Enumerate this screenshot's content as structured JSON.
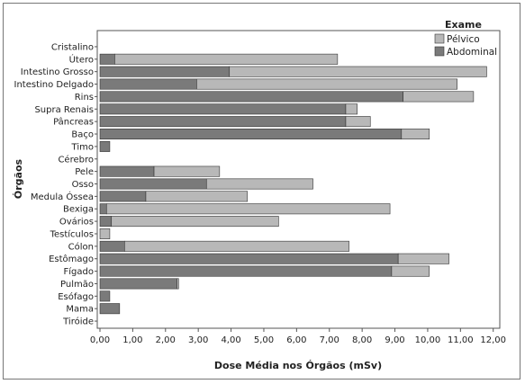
{
  "chart_data": {
    "type": "bar",
    "orientation": "horizontal",
    "stacked": true,
    "xlabel": "Dose Média nos Órgãos (mSv)",
    "ylabel": "Órgãos",
    "xlim": [
      0,
      12.2
    ],
    "x_ticks": [
      "0,00",
      "1,00",
      "2,00",
      "3,00",
      "4,00",
      "5,00",
      "6,00",
      "7,00",
      "8,00",
      "9,00",
      "10,00",
      "11,00",
      "12,00"
    ],
    "x_tick_values": [
      0,
      1,
      2,
      3,
      4,
      5,
      6,
      7,
      8,
      9,
      10,
      11,
      12
    ],
    "grid": false,
    "legend": {
      "title": "Exame",
      "position": "top-right"
    },
    "categories": [
      "Cristalino",
      "Útero",
      "Intestino Grosso",
      "Intestino Delgado",
      "Rins",
      "Supra Renais",
      "Pâncreas",
      "Baço",
      "Timo",
      "Cérebro",
      "Pele",
      "Osso",
      "Medula Óssea",
      "Bexiga",
      "Ovários",
      "Testículos",
      "Cólon",
      "Estômago",
      "Fígado",
      "Pulmão",
      "Esófago",
      "Mama",
      "Tiróide"
    ],
    "series": [
      {
        "name": "Abdominal",
        "color": "#7a7a7a",
        "values": [
          0,
          0.45,
          3.95,
          2.95,
          9.25,
          7.5,
          7.5,
          9.2,
          0.3,
          0,
          1.65,
          3.25,
          1.4,
          0.2,
          0.35,
          0,
          0.75,
          9.1,
          8.9,
          2.35,
          0.3,
          0.6,
          0
        ]
      },
      {
        "name": "Pélvico",
        "color": "#b8b8b8",
        "values": [
          0,
          6.8,
          7.85,
          7.95,
          2.15,
          0.35,
          0.75,
          0.85,
          0,
          0,
          2.0,
          3.25,
          3.1,
          8.65,
          5.1,
          0.3,
          6.85,
          1.55,
          1.15,
          0.05,
          0,
          0,
          0
        ]
      }
    ]
  }
}
